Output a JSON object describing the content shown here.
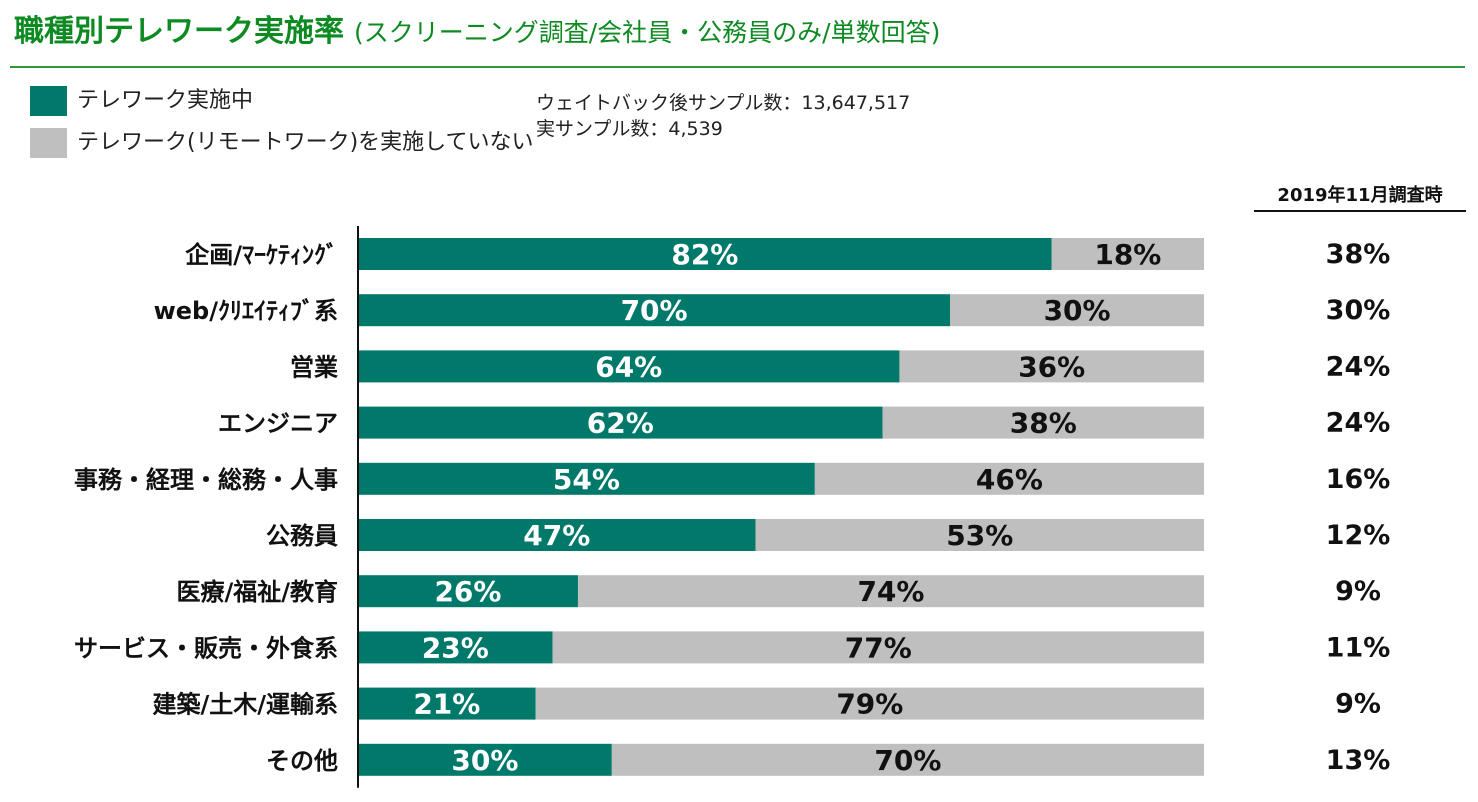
{
  "title": {
    "main": "職種別テレワーク実施率",
    "sub": "(スクリーニング調査/会社員・公務員のみ/単数回答)"
  },
  "legend": [
    {
      "label": "テレワーク実施中",
      "color": "#00796b"
    },
    {
      "label": "テレワーク(リモートワーク)を実施していない",
      "color": "#bfbfbf"
    }
  ],
  "sample_notes": {
    "weighted": "ウェイトバック後サンプル数：13,647,517",
    "actual": "実サンプル数：4,539"
  },
  "comparison_header": "2019年11月調査時",
  "chart_data": {
    "type": "bar",
    "orientation": "horizontal",
    "stacked": true,
    "unit": "%",
    "xlim": [
      0,
      100
    ],
    "categories": [
      "企画/ﾏｰｹﾃｨﾝｸﾞ",
      "web/ｸﾘｴｲﾃｨﾌﾞ系",
      "営業",
      "エンジニア",
      "事務・経理・総務・人事",
      "公務員",
      "医療/福祉/教育",
      "サービス・販売・外食系",
      "建築/土木/運輸系",
      "その他"
    ],
    "series": [
      {
        "name": "テレワーク実施中",
        "color": "#00796b",
        "values": [
          82,
          70,
          64,
          62,
          54,
          47,
          26,
          23,
          21,
          30
        ]
      },
      {
        "name": "テレワーク(リモートワーク)を実施していない",
        "color": "#bfbfbf",
        "values": [
          18,
          30,
          36,
          38,
          46,
          53,
          74,
          77,
          79,
          70
        ]
      }
    ],
    "comparison": {
      "label": "2019年11月調査時",
      "values": [
        38,
        30,
        24,
        24,
        16,
        12,
        9,
        11,
        9,
        13
      ]
    }
  }
}
